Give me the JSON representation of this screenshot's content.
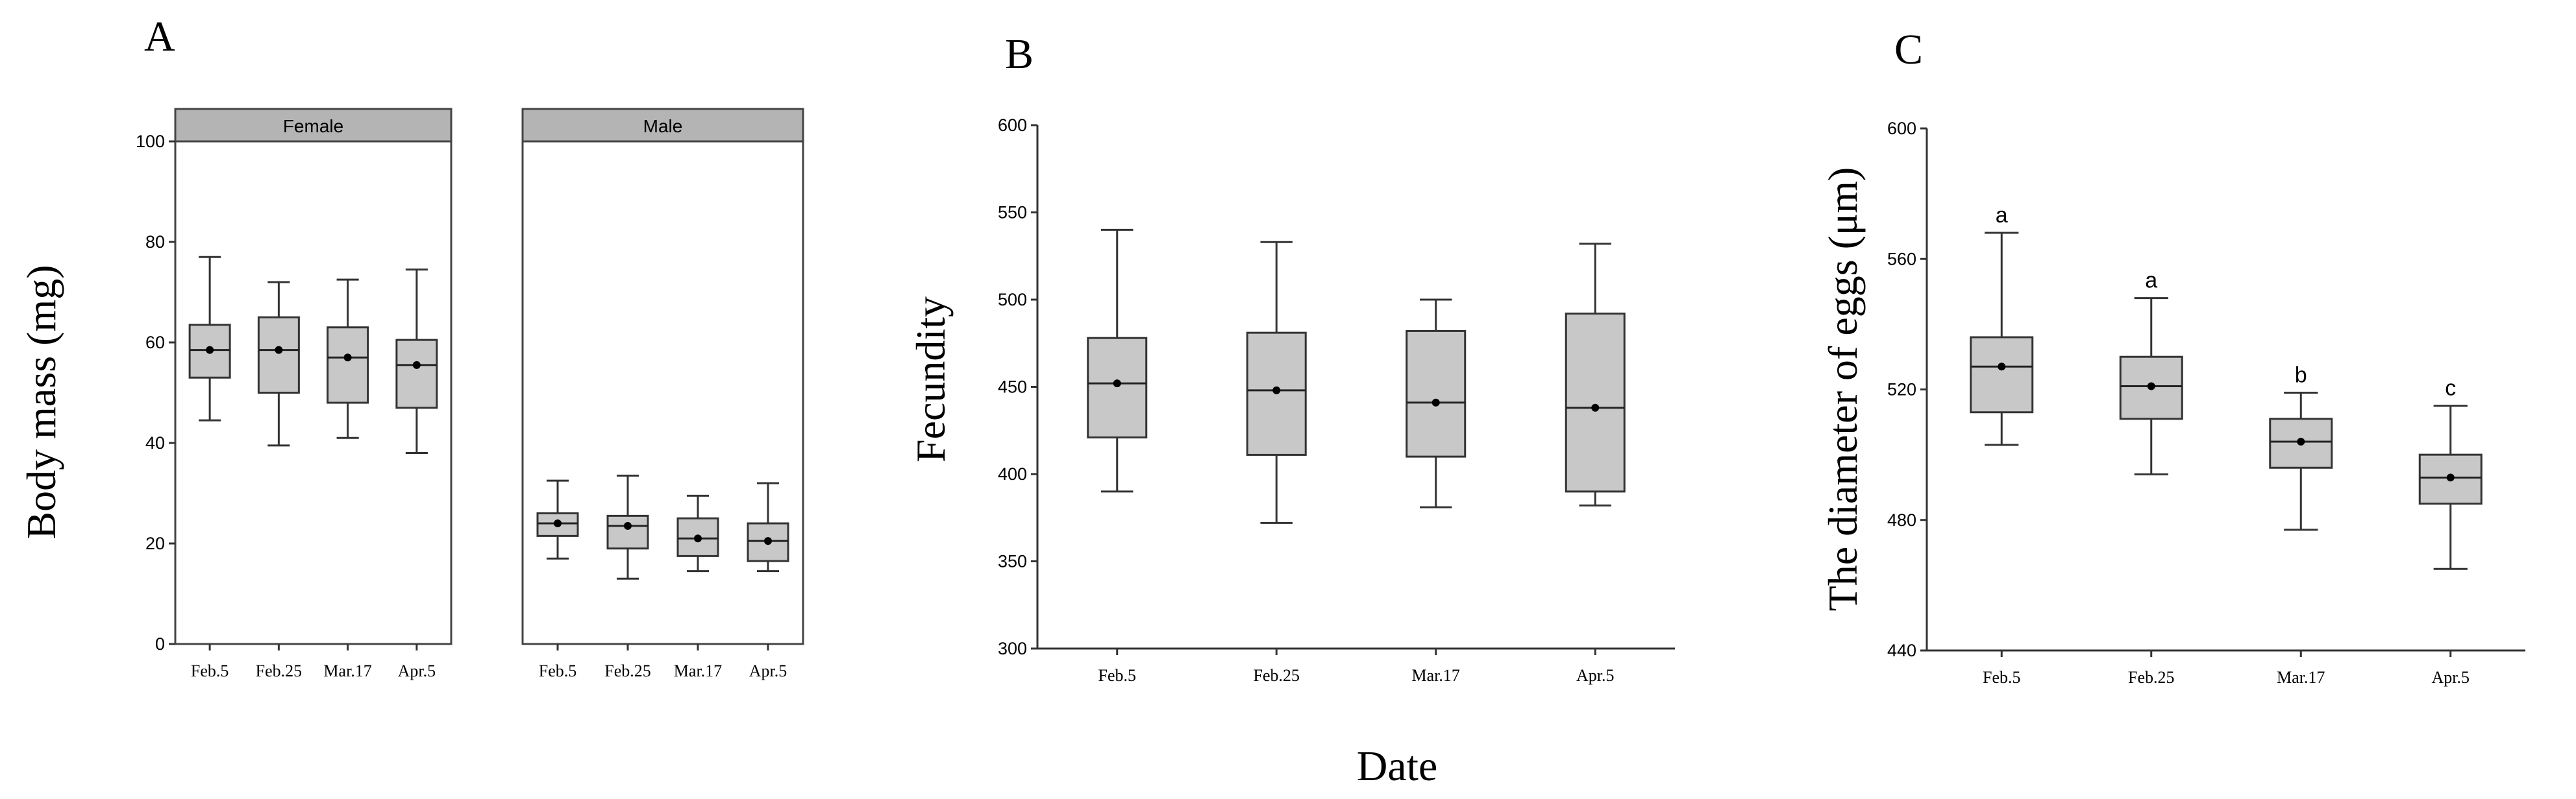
{
  "figure": {
    "panel_letters": [
      "A",
      "B",
      "C"
    ],
    "shared_xlabel": "Date"
  },
  "chart_data": [
    {
      "id": "A",
      "type": "boxplot",
      "ylabel": "Body mass (mg)",
      "ylim": [
        0,
        100
      ],
      "yticks": [
        0,
        20,
        40,
        60,
        80,
        100
      ],
      "facets": [
        {
          "strip_label": "Female",
          "categories": [
            "Feb.5",
            "Feb.25",
            "Mar.17",
            "Apr.5"
          ],
          "boxes": [
            {
              "min": 44.5,
              "q1": 53,
              "median": 58.5,
              "q3": 63.5,
              "max": 77,
              "mean": 58.5
            },
            {
              "min": 39.5,
              "q1": 50,
              "median": 58.5,
              "q3": 65,
              "max": 72,
              "mean": 58.5
            },
            {
              "min": 41,
              "q1": 48,
              "median": 57,
              "q3": 63,
              "max": 72.5,
              "mean": 57
            },
            {
              "min": 38,
              "q1": 47,
              "median": 55.5,
              "q3": 60.5,
              "max": 74.5,
              "mean": 55.5
            }
          ]
        },
        {
          "strip_label": "Male",
          "categories": [
            "Feb.5",
            "Feb.25",
            "Mar.17",
            "Apr.5"
          ],
          "boxes": [
            {
              "min": 17,
              "q1": 21.5,
              "median": 24,
              "q3": 26,
              "max": 32.5,
              "mean": 24
            },
            {
              "min": 13,
              "q1": 19,
              "median": 23.5,
              "q3": 25.5,
              "max": 33.5,
              "mean": 23.5
            },
            {
              "min": 14.5,
              "q1": 17.5,
              "median": 21,
              "q3": 25,
              "max": 29.5,
              "mean": 21
            },
            {
              "min": 14.5,
              "q1": 16.5,
              "median": 20.5,
              "q3": 24,
              "max": 32,
              "mean": 20.5
            }
          ]
        }
      ]
    },
    {
      "id": "B",
      "type": "boxplot",
      "ylabel": "Fecundity",
      "ylim": [
        300,
        600
      ],
      "yticks": [
        300,
        350,
        400,
        450,
        500,
        550,
        600
      ],
      "categories": [
        "Feb.5",
        "Feb.25",
        "Mar.17",
        "Apr.5"
      ],
      "boxes": [
        {
          "min": 390,
          "q1": 421,
          "median": 452,
          "q3": 478,
          "max": 540,
          "mean": 452
        },
        {
          "min": 372,
          "q1": 411,
          "median": 448,
          "q3": 481,
          "max": 533,
          "mean": 448
        },
        {
          "min": 381,
          "q1": 410,
          "median": 441,
          "q3": 482,
          "max": 500,
          "mean": 441
        },
        {
          "min": 382,
          "q1": 390,
          "median": 438,
          "q3": 492,
          "max": 532,
          "mean": 438
        }
      ]
    },
    {
      "id": "C",
      "type": "boxplot",
      "ylabel": "The diameter of eggs  (μm)",
      "ylim": [
        440,
        600
      ],
      "yticks": [
        440,
        480,
        520,
        560,
        600
      ],
      "categories": [
        "Feb.5",
        "Feb.25",
        "Mar.17",
        "Apr.5"
      ],
      "significance": [
        "a",
        "a",
        "b",
        "c"
      ],
      "boxes": [
        {
          "min": 503,
          "q1": 513,
          "median": 527,
          "q3": 536,
          "max": 568,
          "mean": 527
        },
        {
          "min": 494,
          "q1": 511,
          "median": 521,
          "q3": 530,
          "max": 548,
          "mean": 521
        },
        {
          "min": 477,
          "q1": 496,
          "median": 504,
          "q3": 511,
          "max": 519,
          "mean": 504
        },
        {
          "min": 465,
          "q1": 485,
          "median": 493,
          "q3": 500,
          "max": 515,
          "mean": 493
        }
      ]
    }
  ]
}
